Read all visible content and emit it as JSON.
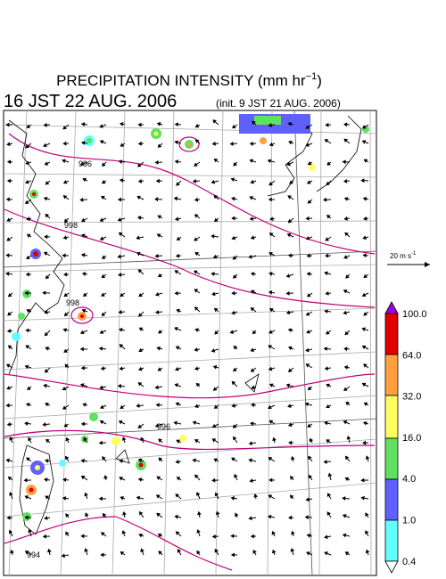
{
  "header": {
    "title": "PRECIPITATION INTENSITY (mm hr",
    "title_sup": "−1",
    "title_end": ")",
    "time": "16 JST 22 AUG. 2006",
    "init": "(init. 9 JST 21 AUG. 2006)"
  },
  "wind_scale": {
    "label": "20 m s",
    "sup": "-1"
  },
  "colorbar": {
    "labels": [
      "100.0",
      "64.0",
      "32.0",
      "16.0",
      "4.0",
      "1.0",
      "0.4"
    ]
  },
  "isobars": {
    "labels": [
      "996",
      "998",
      "998",
      "996",
      "994"
    ]
  }
}
